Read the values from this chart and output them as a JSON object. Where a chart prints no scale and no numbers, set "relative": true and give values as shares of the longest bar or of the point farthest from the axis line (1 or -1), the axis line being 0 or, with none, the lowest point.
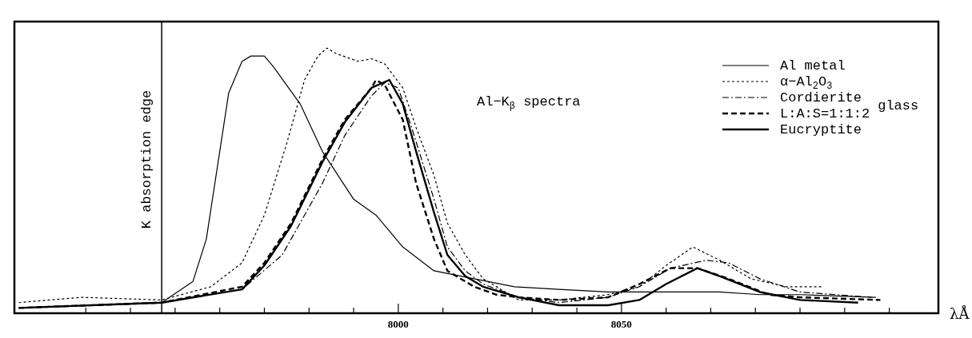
{
  "chart_data": {
    "type": "line",
    "relative": true,
    "xlabel": "λÅ",
    "xlim": [
      7914,
      8121
    ],
    "xticks": [
      {
        "value": 7930,
        "label": null
      },
      {
        "value": 7940,
        "label": null
      },
      {
        "value": 7950,
        "label": null
      },
      {
        "value": 7960,
        "label": null
      },
      {
        "value": 7970,
        "label": null
      },
      {
        "value": 7980,
        "label": null
      },
      {
        "value": 7990,
        "label": null
      },
      8000,
      {
        "value": 8010,
        "label": null
      },
      {
        "value": 8020,
        "label": null
      },
      {
        "value": 8030,
        "label": null
      },
      {
        "value": 8040,
        "label": null
      },
      8050,
      {
        "value": 8060,
        "label": null
      },
      {
        "value": 8070,
        "label": null
      },
      {
        "value": 8080,
        "label": null
      },
      {
        "value": 8090,
        "label": null
      },
      {
        "value": 8100,
        "label": null
      },
      {
        "value": 8110,
        "label": null
      }
    ],
    "legend": "top right",
    "marker": "none",
    "ref_lines": [
      {
        "axis": "x",
        "value": 7947,
        "label": "K absorption edge",
        "color": "#000000"
      }
    ],
    "annotations": [
      "Al−K$_{β}$ spectra",
      "glass"
    ],
    "series": [
      {
        "name": "Al metal",
        "color": "#000000",
        "line_style": "solid",
        "x": [
          7915,
          7947,
          7954,
          7957,
          7962,
          7965,
          7967,
          7970,
          7972,
          7978,
          7983,
          7990,
          7995,
          8001,
          8008,
          8017,
          8026,
          8036,
          8047,
          8058,
          8072,
          8081,
          8090,
          8107
        ],
        "values": [
          0.02,
          0.04,
          0.12,
          0.28,
          0.83,
          0.95,
          0.97,
          0.97,
          0.93,
          0.79,
          0.61,
          0.43,
          0.37,
          0.25,
          0.16,
          0.13,
          0.1,
          0.09,
          0.08,
          0.08,
          0.08,
          0.07,
          0.07,
          0.06
        ]
      },
      {
        "name": "α−Al$_{2}$O$_{3}$",
        "color": "#000000",
        "line_style": "dotted",
        "x": [
          7915,
          7929,
          7947,
          7958,
          7965,
          7970,
          7975,
          7979,
          7982,
          7984,
          7986,
          7991,
          7994,
          7997,
          8001,
          8004,
          8008,
          8011,
          8015,
          8019,
          8027,
          8036,
          8047,
          8054,
          8060,
          8066,
          8072,
          8079,
          8087,
          8095
        ],
        "values": [
          0.04,
          0.06,
          0.05,
          0.1,
          0.19,
          0.37,
          0.64,
          0.88,
          0.97,
          1,
          0.98,
          0.95,
          0.96,
          0.94,
          0.85,
          0.7,
          0.52,
          0.34,
          0.22,
          0.13,
          0.05,
          0.05,
          0.07,
          0.1,
          0.18,
          0.25,
          0.2,
          0.13,
          0.1,
          0.1
        ]
      },
      {
        "name": "Cordierite",
        "color": "#000000",
        "line_style": "dashdot",
        "x": [
          7915,
          7947,
          7965,
          7974,
          7983,
          7988,
          7994,
          7997,
          8000,
          8003,
          8008,
          8011,
          8015,
          8019,
          8027,
          8036,
          8047,
          8054,
          8061,
          8069,
          8074,
          8081,
          8090,
          8106
        ],
        "values": [
          0.02,
          0.04,
          0.09,
          0.22,
          0.49,
          0.67,
          0.82,
          0.87,
          0.85,
          0.7,
          0.43,
          0.25,
          0.16,
          0.11,
          0.06,
          0.04,
          0.06,
          0.1,
          0.17,
          0.2,
          0.19,
          0.13,
          0.08,
          0.06
        ]
      },
      {
        "name": "L:A:S=1:1:2",
        "color": "#000000",
        "line_style": "dashed",
        "x": [
          7915,
          7947,
          7965,
          7970,
          7976,
          7983,
          7988,
          7994,
          7995,
          7997,
          8001,
          8004,
          8008,
          8011,
          8017,
          8022,
          8027,
          8036,
          8047,
          8054,
          8061,
          8067,
          8074,
          8083,
          8090,
          8108
        ],
        "values": [
          0.02,
          0.04,
          0.1,
          0.19,
          0.34,
          0.58,
          0.73,
          0.85,
          0.88,
          0.86,
          0.73,
          0.49,
          0.28,
          0.16,
          0.1,
          0.07,
          0.06,
          0.05,
          0.06,
          0.11,
          0.17,
          0.17,
          0.13,
          0.07,
          0.06,
          0.05
        ]
      },
      {
        "name": "Eucryptite",
        "color": "#000000",
        "line_style": "solid",
        "x": [
          7915,
          7947,
          7965,
          7970,
          7976,
          7983,
          7988,
          7994,
          7998,
          8001,
          8004,
          8008,
          8011,
          8015,
          8019,
          8027,
          8036,
          8047,
          8054,
          8060,
          8067,
          8072,
          8081,
          8090,
          8103
        ],
        "values": [
          0.02,
          0.04,
          0.09,
          0.18,
          0.33,
          0.57,
          0.72,
          0.85,
          0.88,
          0.79,
          0.61,
          0.38,
          0.22,
          0.14,
          0.1,
          0.06,
          0.03,
          0.03,
          0.05,
          0.11,
          0.17,
          0.14,
          0.08,
          0.05,
          0.04
        ]
      }
    ]
  }
}
